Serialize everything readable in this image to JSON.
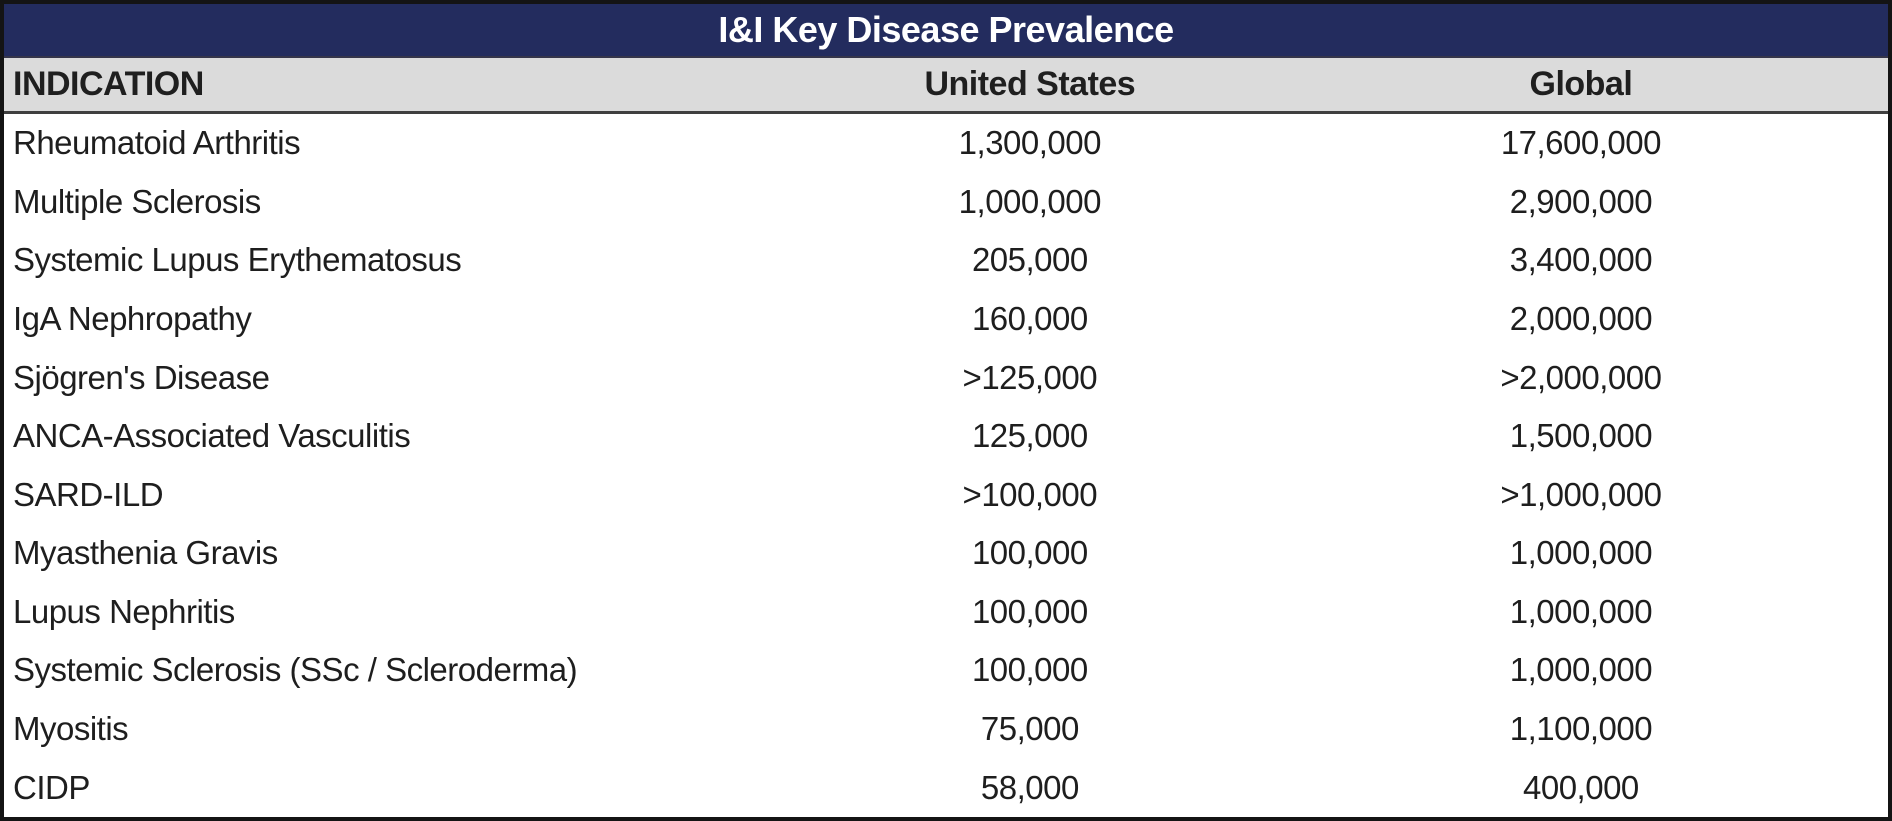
{
  "title": "I&I Key Disease Prevalence",
  "colors": {
    "title_bg": "#232C5E",
    "title_text": "#FFFFFF",
    "header_bg": "#DBDBDB",
    "header_text": "#1F1F1F",
    "row_text": "#1E1E1E",
    "outer_border": "#141414"
  },
  "table": {
    "columns": [
      {
        "label": "INDICATION",
        "align": "left"
      },
      {
        "label": "United States",
        "align": "center"
      },
      {
        "label": "Global",
        "align": "center"
      }
    ],
    "rows": [
      {
        "indication": "Rheumatoid Arthritis",
        "united_states": "1,300,000",
        "global": "17,600,000"
      },
      {
        "indication": "Multiple Sclerosis",
        "united_states": "1,000,000",
        "global": "2,900,000"
      },
      {
        "indication": "Systemic Lupus Erythematosus",
        "united_states": "205,000",
        "global": "3,400,000"
      },
      {
        "indication": "IgA Nephropathy",
        "united_states": "160,000",
        "global": "2,000,000"
      },
      {
        "indication": "Sjögren's Disease",
        "united_states": ">125,000",
        "global": ">2,000,000"
      },
      {
        "indication": "ANCA-Associated Vasculitis",
        "united_states": "125,000",
        "global": "1,500,000"
      },
      {
        "indication": "SARD-ILD",
        "united_states": ">100,000",
        "global": ">1,000,000"
      },
      {
        "indication": "Myasthenia Gravis",
        "united_states": "100,000",
        "global": "1,000,000"
      },
      {
        "indication": "Lupus Nephritis",
        "united_states": "100,000",
        "global": "1,000,000"
      },
      {
        "indication": "Systemic Sclerosis (SSc / Scleroderma)",
        "united_states": "100,000",
        "global": "1,000,000"
      },
      {
        "indication": "Myositis",
        "united_states": "75,000",
        "global": "1,100,000"
      },
      {
        "indication": "CIDP",
        "united_states": "58,000",
        "global": "400,000"
      }
    ]
  },
  "chart_data": {
    "type": "table",
    "title": "I&I Key Disease Prevalence",
    "columns": [
      "INDICATION",
      "United States",
      "Global"
    ],
    "rows": [
      [
        "Rheumatoid Arthritis",
        "1,300,000",
        "17,600,000"
      ],
      [
        "Multiple Sclerosis",
        "1,000,000",
        "2,900,000"
      ],
      [
        "Systemic Lupus Erythematosus",
        "205,000",
        "3,400,000"
      ],
      [
        "IgA Nephropathy",
        "160,000",
        "2,000,000"
      ],
      [
        "Sjögren's Disease",
        ">125,000",
        ">2,000,000"
      ],
      [
        "ANCA-Associated Vasculitis",
        "125,000",
        "1,500,000"
      ],
      [
        "SARD-ILD",
        ">100,000",
        ">1,000,000"
      ],
      [
        "Myasthenia Gravis",
        "100,000",
        "1,000,000"
      ],
      [
        "Lupus Nephritis",
        "100,000",
        "1,000,000"
      ],
      [
        "Systemic Sclerosis (SSc / Scleroderma)",
        "100,000",
        "1,000,000"
      ],
      [
        "Myositis",
        "75,000",
        "1,100,000"
      ],
      [
        "CIDP",
        "58,000",
        "400,000"
      ]
    ]
  }
}
